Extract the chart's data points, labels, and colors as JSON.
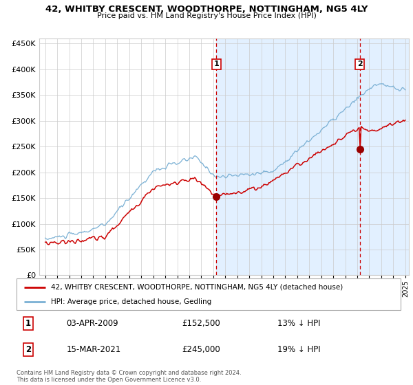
{
  "title": "42, WHITBY CRESCENT, WOODTHORPE, NOTTINGHAM, NG5 4LY",
  "subtitle": "Price paid vs. HM Land Registry's House Price Index (HPI)",
  "legend_line1": "42, WHITBY CRESCENT, WOODTHORPE, NOTTINGHAM, NG5 4LY (detached house)",
  "legend_line2": "HPI: Average price, detached house, Gedling",
  "annotation1_label": "1",
  "annotation1_date": "03-APR-2009",
  "annotation1_price": "£152,500",
  "annotation1_hpi": "13% ↓ HPI",
  "annotation2_label": "2",
  "annotation2_date": "15-MAR-2021",
  "annotation2_price": "£245,000",
  "annotation2_hpi": "19% ↓ HPI",
  "footnote": "Contains HM Land Registry data © Crown copyright and database right 2024.\nThis data is licensed under the Open Government Licence v3.0.",
  "red_line_color": "#cc0000",
  "blue_line_color": "#7ab0d4",
  "marker_color": "#990000",
  "shade_color": "#ddeeff",
  "grid_color": "#cccccc",
  "vline_color": "#cc0000",
  "annotation_box_color": "#cc0000",
  "ylim_max": 460000,
  "year_start": 1995,
  "year_end": 2025,
  "purchase1_year": 2009.25,
  "purchase1_value": 152500,
  "purchase2_year": 2021.2,
  "purchase2_value": 245000
}
